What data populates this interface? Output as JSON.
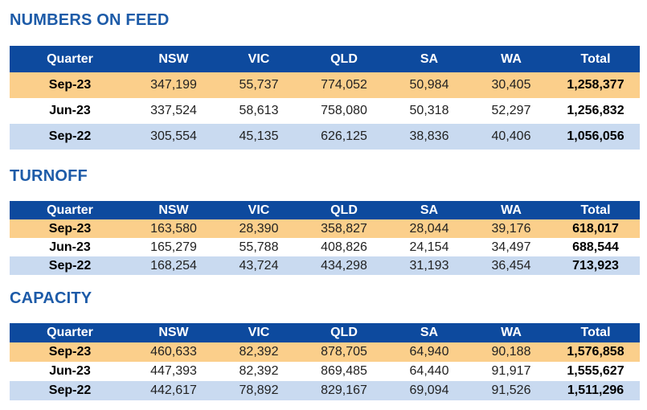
{
  "columns": [
    "Quarter",
    "NSW",
    "VIC",
    "QLD",
    "SA",
    "WA",
    "Total"
  ],
  "sections": [
    {
      "title": "NUMBERS ON FEED",
      "rows": [
        [
          "Sep-23",
          "347,199",
          "55,737",
          "774,052",
          "50,984",
          "30,405",
          "1,258,377"
        ],
        [
          "Jun-23",
          "337,524",
          "58,613",
          "758,080",
          "50,318",
          "52,297",
          "1,256,832"
        ],
        [
          "Sep-22",
          "305,554",
          "45,135",
          "626,125",
          "38,836",
          "40,406",
          "1,056,056"
        ]
      ]
    },
    {
      "title": "TURNOFF",
      "rows": [
        [
          "Sep-23",
          "163,580",
          "28,390",
          "358,827",
          "28,044",
          "39,176",
          "618,017"
        ],
        [
          "Jun-23",
          "165,279",
          "55,788",
          "408,826",
          "24,154",
          "34,497",
          "688,544"
        ],
        [
          "Sep-22",
          "168,254",
          "43,724",
          "434,298",
          "31,193",
          "36,454",
          "713,923"
        ]
      ]
    },
    {
      "title": "CAPACITY",
      "rows": [
        [
          "Sep-23",
          "460,633",
          "82,392",
          "878,705",
          "64,940",
          "90,188",
          "1,576,858"
        ],
        [
          "Jun-23",
          "447,393",
          "82,392",
          "869,485",
          "64,440",
          "91,917",
          "1,555,627"
        ],
        [
          "Sep-22",
          "442,617",
          "78,892",
          "829,167",
          "69,094",
          "91,526",
          "1,511,296"
        ]
      ]
    }
  ],
  "colors": {
    "header_bg": "#0d4a9e",
    "title": "#1d5ba8",
    "row_current": "#fbcf8b",
    "row_prior_year": "#c9daf0"
  }
}
